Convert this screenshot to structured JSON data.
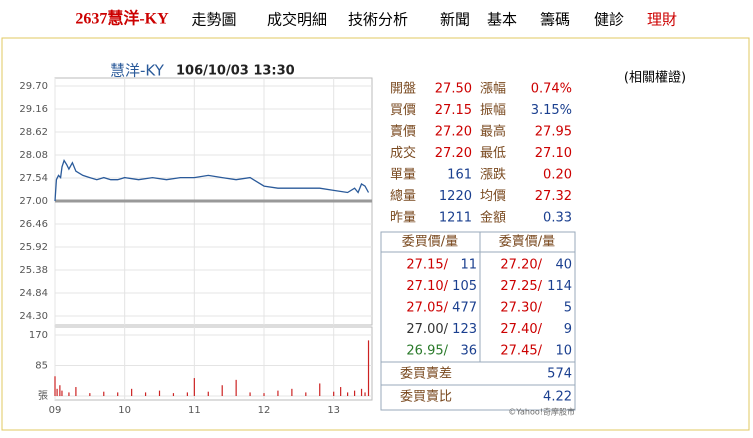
{
  "nav": {
    "stock": "2637慧洋-KY",
    "links": [
      "走勢圖",
      "成交明細",
      "技術分析",
      "新聞",
      "基本",
      "籌碼",
      "健診",
      "理財"
    ],
    "link_colors": [
      "#000000",
      "#000000",
      "#000000",
      "#000000",
      "#000000",
      "#000000",
      "#000000",
      "#cc0000"
    ]
  },
  "warrants": "(相關權證)",
  "chart_data": [
    {
      "type": "line",
      "title": "慧洋-KY",
      "subtitle": "106/10/03 13:30",
      "color": "#2a5a9a",
      "ref": 27.0,
      "x": [
        9.0,
        9.02,
        9.05,
        9.08,
        9.1,
        9.13,
        9.17,
        9.2,
        9.25,
        9.3,
        9.4,
        9.5,
        9.6,
        9.7,
        9.8,
        9.9,
        10.0,
        10.2,
        10.4,
        10.6,
        10.8,
        11.0,
        11.2,
        11.4,
        11.6,
        11.8,
        12.0,
        12.2,
        12.4,
        12.6,
        12.8,
        13.0,
        13.2,
        13.3,
        13.35,
        13.4,
        13.45,
        13.5
      ],
      "values": [
        27.0,
        27.5,
        27.6,
        27.55,
        27.8,
        27.95,
        27.85,
        27.75,
        27.9,
        27.7,
        27.6,
        27.55,
        27.5,
        27.55,
        27.5,
        27.5,
        27.55,
        27.5,
        27.55,
        27.5,
        27.55,
        27.55,
        27.6,
        27.55,
        27.5,
        27.55,
        27.35,
        27.3,
        27.3,
        27.3,
        27.3,
        27.25,
        27.2,
        27.3,
        27.2,
        27.4,
        27.35,
        27.2
      ],
      "xlim": [
        9,
        13.55
      ],
      "xticks": [
        {
          "value": 9,
          "label": "09"
        },
        10,
        11,
        12,
        13
      ],
      "ylim": [
        24.3,
        29.7
      ],
      "yticks": [
        {
          "value": 29.7,
          "label": "29.70"
        },
        29.16,
        28.62,
        28.08,
        27.54,
        {
          "value": 27.0,
          "label": "27.00"
        },
        26.46,
        25.92,
        25.38,
        24.84,
        {
          "value": 24.3,
          "label": "24.30"
        }
      ],
      "grid": true
    },
    {
      "type": "bar",
      "color": "#cc2222",
      "x": [
        9.0,
        9.03,
        9.07,
        9.1,
        9.2,
        9.3,
        9.5,
        9.7,
        9.9,
        10.1,
        10.3,
        10.5,
        10.7,
        10.9,
        11.0,
        11.2,
        11.4,
        11.6,
        11.8,
        12.0,
        12.2,
        12.4,
        12.6,
        12.8,
        13.0,
        13.1,
        13.2,
        13.3,
        13.4,
        13.45,
        13.5
      ],
      "values": [
        55,
        20,
        30,
        15,
        10,
        25,
        8,
        12,
        10,
        20,
        10,
        15,
        8,
        10,
        50,
        12,
        30,
        45,
        10,
        8,
        15,
        20,
        10,
        35,
        12,
        25,
        10,
        15,
        20,
        10,
        155
      ],
      "xlim": [
        9,
        13.55
      ],
      "ylim": [
        0,
        170
      ],
      "yticks": [
        {
          "value": 0,
          "label": "張"
        },
        85,
        170
      ],
      "grid": true
    }
  ],
  "quote": {
    "rows": [
      [
        "開盤",
        "27.50",
        "漲幅",
        "0.74%"
      ],
      [
        "買價",
        "27.15",
        "振幅",
        "3.15%"
      ],
      [
        "賣價",
        "27.20",
        "最高",
        "27.95"
      ],
      [
        "成交",
        "27.20",
        "最低",
        "27.10"
      ],
      [
        "單量",
        "161",
        "漲跌",
        "0.20"
      ],
      [
        "總量",
        "1220",
        "均價",
        "27.32"
      ],
      [
        "昨量",
        "1211",
        "金額",
        "0.33"
      ]
    ],
    "colors": [
      [
        "#cc0000",
        "#cc0000"
      ],
      [
        "#cc0000",
        "#1a3f8f"
      ],
      [
        "#cc0000",
        "#cc0000"
      ],
      [
        "#cc0000",
        "#cc0000"
      ],
      [
        "#1a3f8f",
        "#cc0000"
      ],
      [
        "#1a3f8f",
        "#cc0000"
      ],
      [
        "#1a3f8f",
        "#1a3f8f"
      ]
    ]
  },
  "orders": {
    "headers": [
      "委買價/量",
      "委賣價/量"
    ],
    "rows": [
      [
        "27.15/",
        "11",
        "27.20/",
        "40"
      ],
      [
        "27.10/",
        "105",
        "27.25/",
        "114"
      ],
      [
        "27.05/",
        "477",
        "27.30/",
        "5"
      ],
      [
        "27.00/",
        "123",
        "27.40/",
        "9"
      ],
      [
        "26.95/",
        "36",
        "27.45/",
        "10"
      ]
    ],
    "bid_colors": [
      "#cc0000",
      "#cc0000",
      "#cc0000",
      "#333333",
      "#2a7a2a"
    ],
    "ask_color": "#cc0000",
    "summary": [
      [
        "委買賣差",
        "574"
      ],
      [
        "委買賣比",
        "4.22"
      ]
    ]
  },
  "credit": "©Yahoo!奇摩股市"
}
